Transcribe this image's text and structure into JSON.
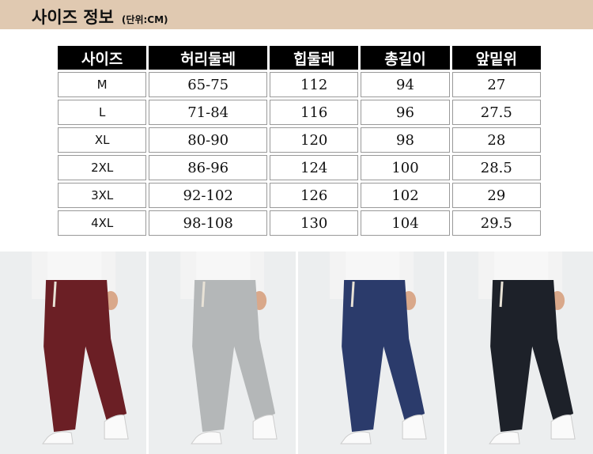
{
  "header": {
    "title": "사이즈 정보",
    "unit": "(단위:CM)"
  },
  "table": {
    "columns": [
      "사이즈",
      "허리둘레",
      "힙둘레",
      "총길이",
      "앞밑위"
    ],
    "rows": [
      [
        "M",
        "65-75",
        "112",
        "94",
        "27"
      ],
      [
        "L",
        "71-84",
        "116",
        "96",
        "27.5"
      ],
      [
        "XL",
        "80-90",
        "120",
        "98",
        "28"
      ],
      [
        "2XL",
        "86-96",
        "124",
        "100",
        "28.5"
      ],
      [
        "3XL",
        "92-102",
        "126",
        "102",
        "29"
      ],
      [
        "4XL",
        "98-108",
        "130",
        "104",
        "29.5"
      ]
    ]
  },
  "photos": [
    {
      "color_name": "burgundy",
      "color": "#6b1f25"
    },
    {
      "color_name": "light-grey",
      "color": "#b4b7b8"
    },
    {
      "color_name": "navy",
      "color": "#2b3b6b"
    },
    {
      "color_name": "black",
      "color": "#1d2129"
    }
  ]
}
